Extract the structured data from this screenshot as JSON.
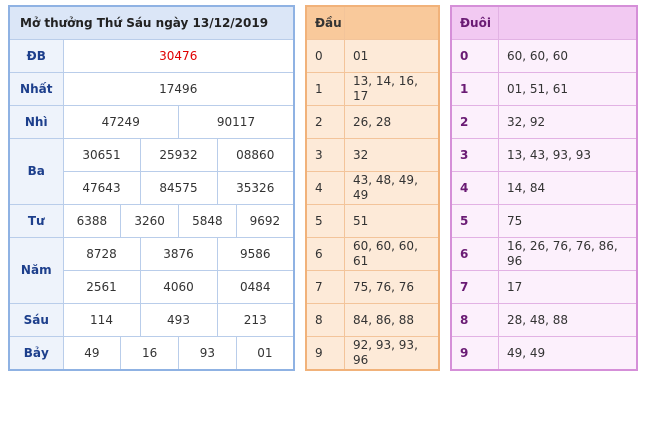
{
  "results": {
    "title": "Mở thưởng Thứ Sáu ngày 13/12/2019",
    "rows": [
      {
        "label": "ĐB",
        "lines": [
          [
            "30476"
          ]
        ]
      },
      {
        "label": "Nhất",
        "lines": [
          [
            "17496"
          ]
        ]
      },
      {
        "label": "Nhì",
        "lines": [
          [
            "47249",
            "90117"
          ]
        ]
      },
      {
        "label": "Ba",
        "lines": [
          [
            "30651",
            "25932",
            "08860"
          ],
          [
            "47643",
            "84575",
            "35326"
          ]
        ]
      },
      {
        "label": "Tư",
        "lines": [
          [
            "6388",
            "3260",
            "5848",
            "9692"
          ]
        ]
      },
      {
        "label": "Năm",
        "lines": [
          [
            "8728",
            "3876",
            "9586"
          ],
          [
            "2561",
            "4060",
            "0484"
          ]
        ]
      },
      {
        "label": "Sáu",
        "lines": [
          [
            "114",
            "493",
            "213"
          ]
        ]
      },
      {
        "label": "Bảy",
        "lines": [
          [
            "49",
            "16",
            "93",
            "01"
          ]
        ]
      }
    ]
  },
  "head": {
    "header": "Đầu",
    "rows": [
      {
        "digit": "0",
        "values": "01"
      },
      {
        "digit": "1",
        "values": "13, 14, 16, 17"
      },
      {
        "digit": "2",
        "values": "26, 28"
      },
      {
        "digit": "3",
        "values": "32"
      },
      {
        "digit": "4",
        "values": "43, 48, 49, 49"
      },
      {
        "digit": "5",
        "values": "51"
      },
      {
        "digit": "6",
        "values": "60, 60, 60, 61"
      },
      {
        "digit": "7",
        "values": "75, 76, 76"
      },
      {
        "digit": "8",
        "values": "84, 86, 88"
      },
      {
        "digit": "9",
        "values": "92, 93, 93, 96"
      }
    ]
  },
  "tail": {
    "header": "Đuôi",
    "rows": [
      {
        "digit": "0",
        "values": "60, 60, 60"
      },
      {
        "digit": "1",
        "values": "01, 51, 61"
      },
      {
        "digit": "2",
        "values": "32, 92"
      },
      {
        "digit": "3",
        "values": "13, 43, 93, 93"
      },
      {
        "digit": "4",
        "values": "14, 84"
      },
      {
        "digit": "5",
        "values": "75"
      },
      {
        "digit": "6",
        "values": "16, 26, 76, 76, 86, 96"
      },
      {
        "digit": "7",
        "values": "17"
      },
      {
        "digit": "8",
        "values": "28, 48, 88"
      },
      {
        "digit": "9",
        "values": "49, 49"
      }
    ]
  }
}
